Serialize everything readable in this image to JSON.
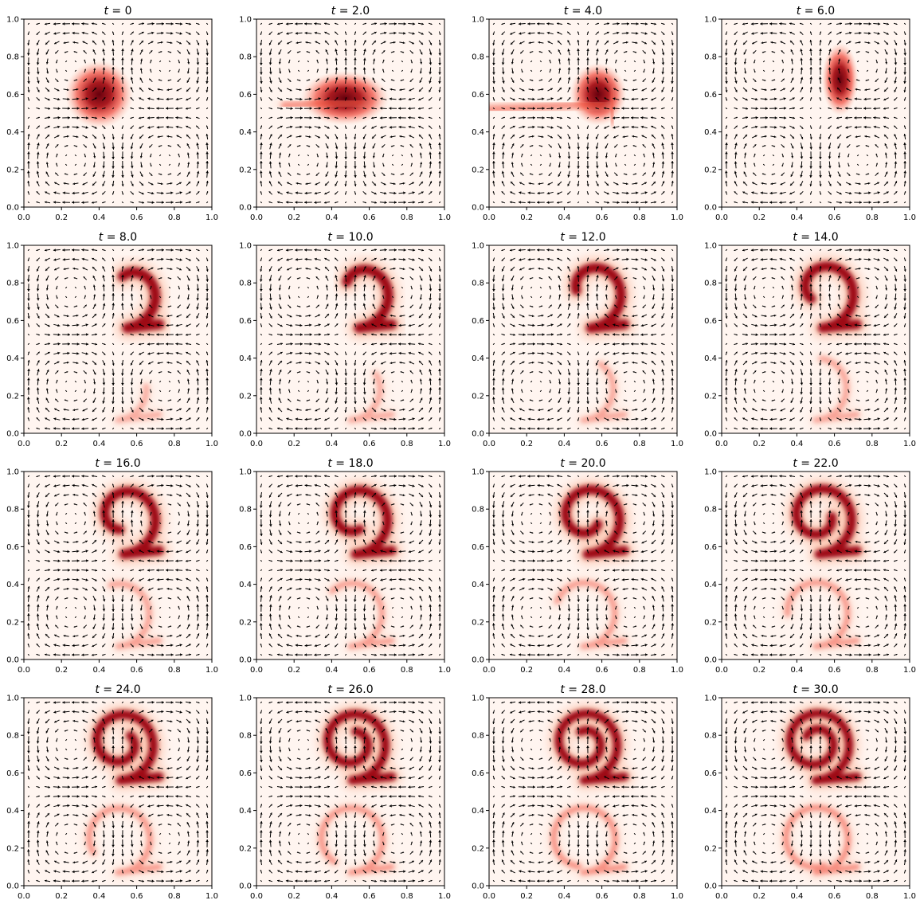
{
  "figure": {
    "title_prefix": "t = ",
    "panels": [
      {
        "title": "0"
      },
      {
        "title": "2.0"
      },
      {
        "title": "4.0"
      },
      {
        "title": "6.0"
      },
      {
        "title": "8.0"
      },
      {
        "title": "10.0"
      },
      {
        "title": "12.0"
      },
      {
        "title": "14.0"
      },
      {
        "title": "16.0"
      },
      {
        "title": "18.0"
      },
      {
        "title": "20.0"
      },
      {
        "title": "22.0"
      },
      {
        "title": "24.0"
      },
      {
        "title": "26.0"
      },
      {
        "title": "28.0"
      },
      {
        "title": "30.0"
      }
    ],
    "colors": {
      "low": "#fff5f0",
      "mid": "#fb6a4a",
      "high": "#67000d",
      "arrow": "#000000"
    }
  },
  "chart_data": {
    "type": "heatmap",
    "overlay": "quiver",
    "colormap": "Reds",
    "xlim": [
      0,
      1
    ],
    "ylim": [
      0,
      1
    ],
    "xticks": [
      "0.0",
      "0.2",
      "0.4",
      "0.6",
      "0.8",
      "1.0"
    ],
    "yticks": [
      "0.0",
      "0.2",
      "0.4",
      "0.6",
      "0.8",
      "1.0"
    ],
    "times": [
      0,
      2,
      4,
      6,
      8,
      10,
      12,
      14,
      16,
      18,
      20,
      22,
      24,
      26,
      28,
      30
    ],
    "quiver_grid_n": 20,
    "velocity_field": "cellular flow: two counter-rotating cells per half-domain, cell centers near (0.25,0.25),(0.75,0.25),(0.25,0.75),(0.75,0.75)",
    "initial_blob_center": [
      0.4,
      0.6
    ],
    "initial_blob_radius": 0.1,
    "grid": false
  }
}
